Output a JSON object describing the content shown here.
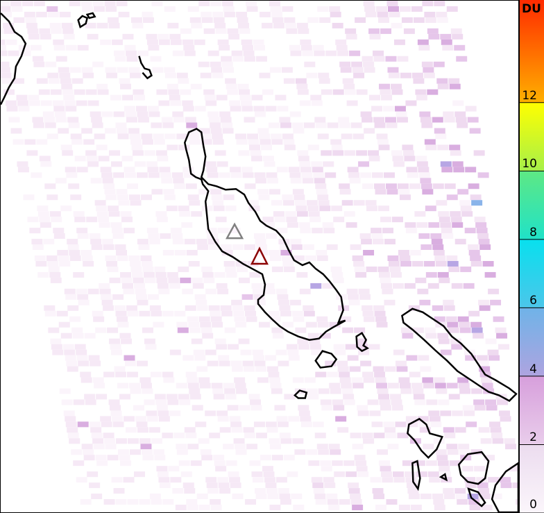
{
  "map": {
    "colorbar": {
      "unit": "DU",
      "min": 0,
      "max": 15,
      "ticks": [
        "0",
        "2",
        "4",
        "6",
        "8",
        "10",
        "12"
      ],
      "tick_values": [
        0,
        2,
        4,
        6,
        8,
        10,
        12
      ],
      "colors": [
        {
          "from": 0,
          "to": 2,
          "top": "#ecdcef",
          "bottom": "#fbf6fb"
        },
        {
          "from": 2,
          "to": 4,
          "top": "#d79fdc",
          "bottom": "#e9cdeb"
        },
        {
          "from": 4,
          "to": 6,
          "top": "#6fb3e8",
          "bottom": "#aea4e0"
        },
        {
          "from": 6,
          "to": 8,
          "top": "#08e0ee",
          "bottom": "#4cc6ea"
        },
        {
          "from": 8,
          "to": 10,
          "top": "#5ee884",
          "bottom": "#20e2c8"
        },
        {
          "from": 10,
          "to": 12,
          "top": "#ffff00",
          "bottom": "#a6f04a"
        },
        {
          "from": 12,
          "to": 15,
          "top": "#ff2a00",
          "bottom": "#ffb000"
        }
      ]
    },
    "markers": [
      {
        "name": "volcano-gray",
        "color": "#808080"
      },
      {
        "name": "volcano-red",
        "color": "#8b0000"
      }
    ],
    "coastline_color": "#000000"
  }
}
